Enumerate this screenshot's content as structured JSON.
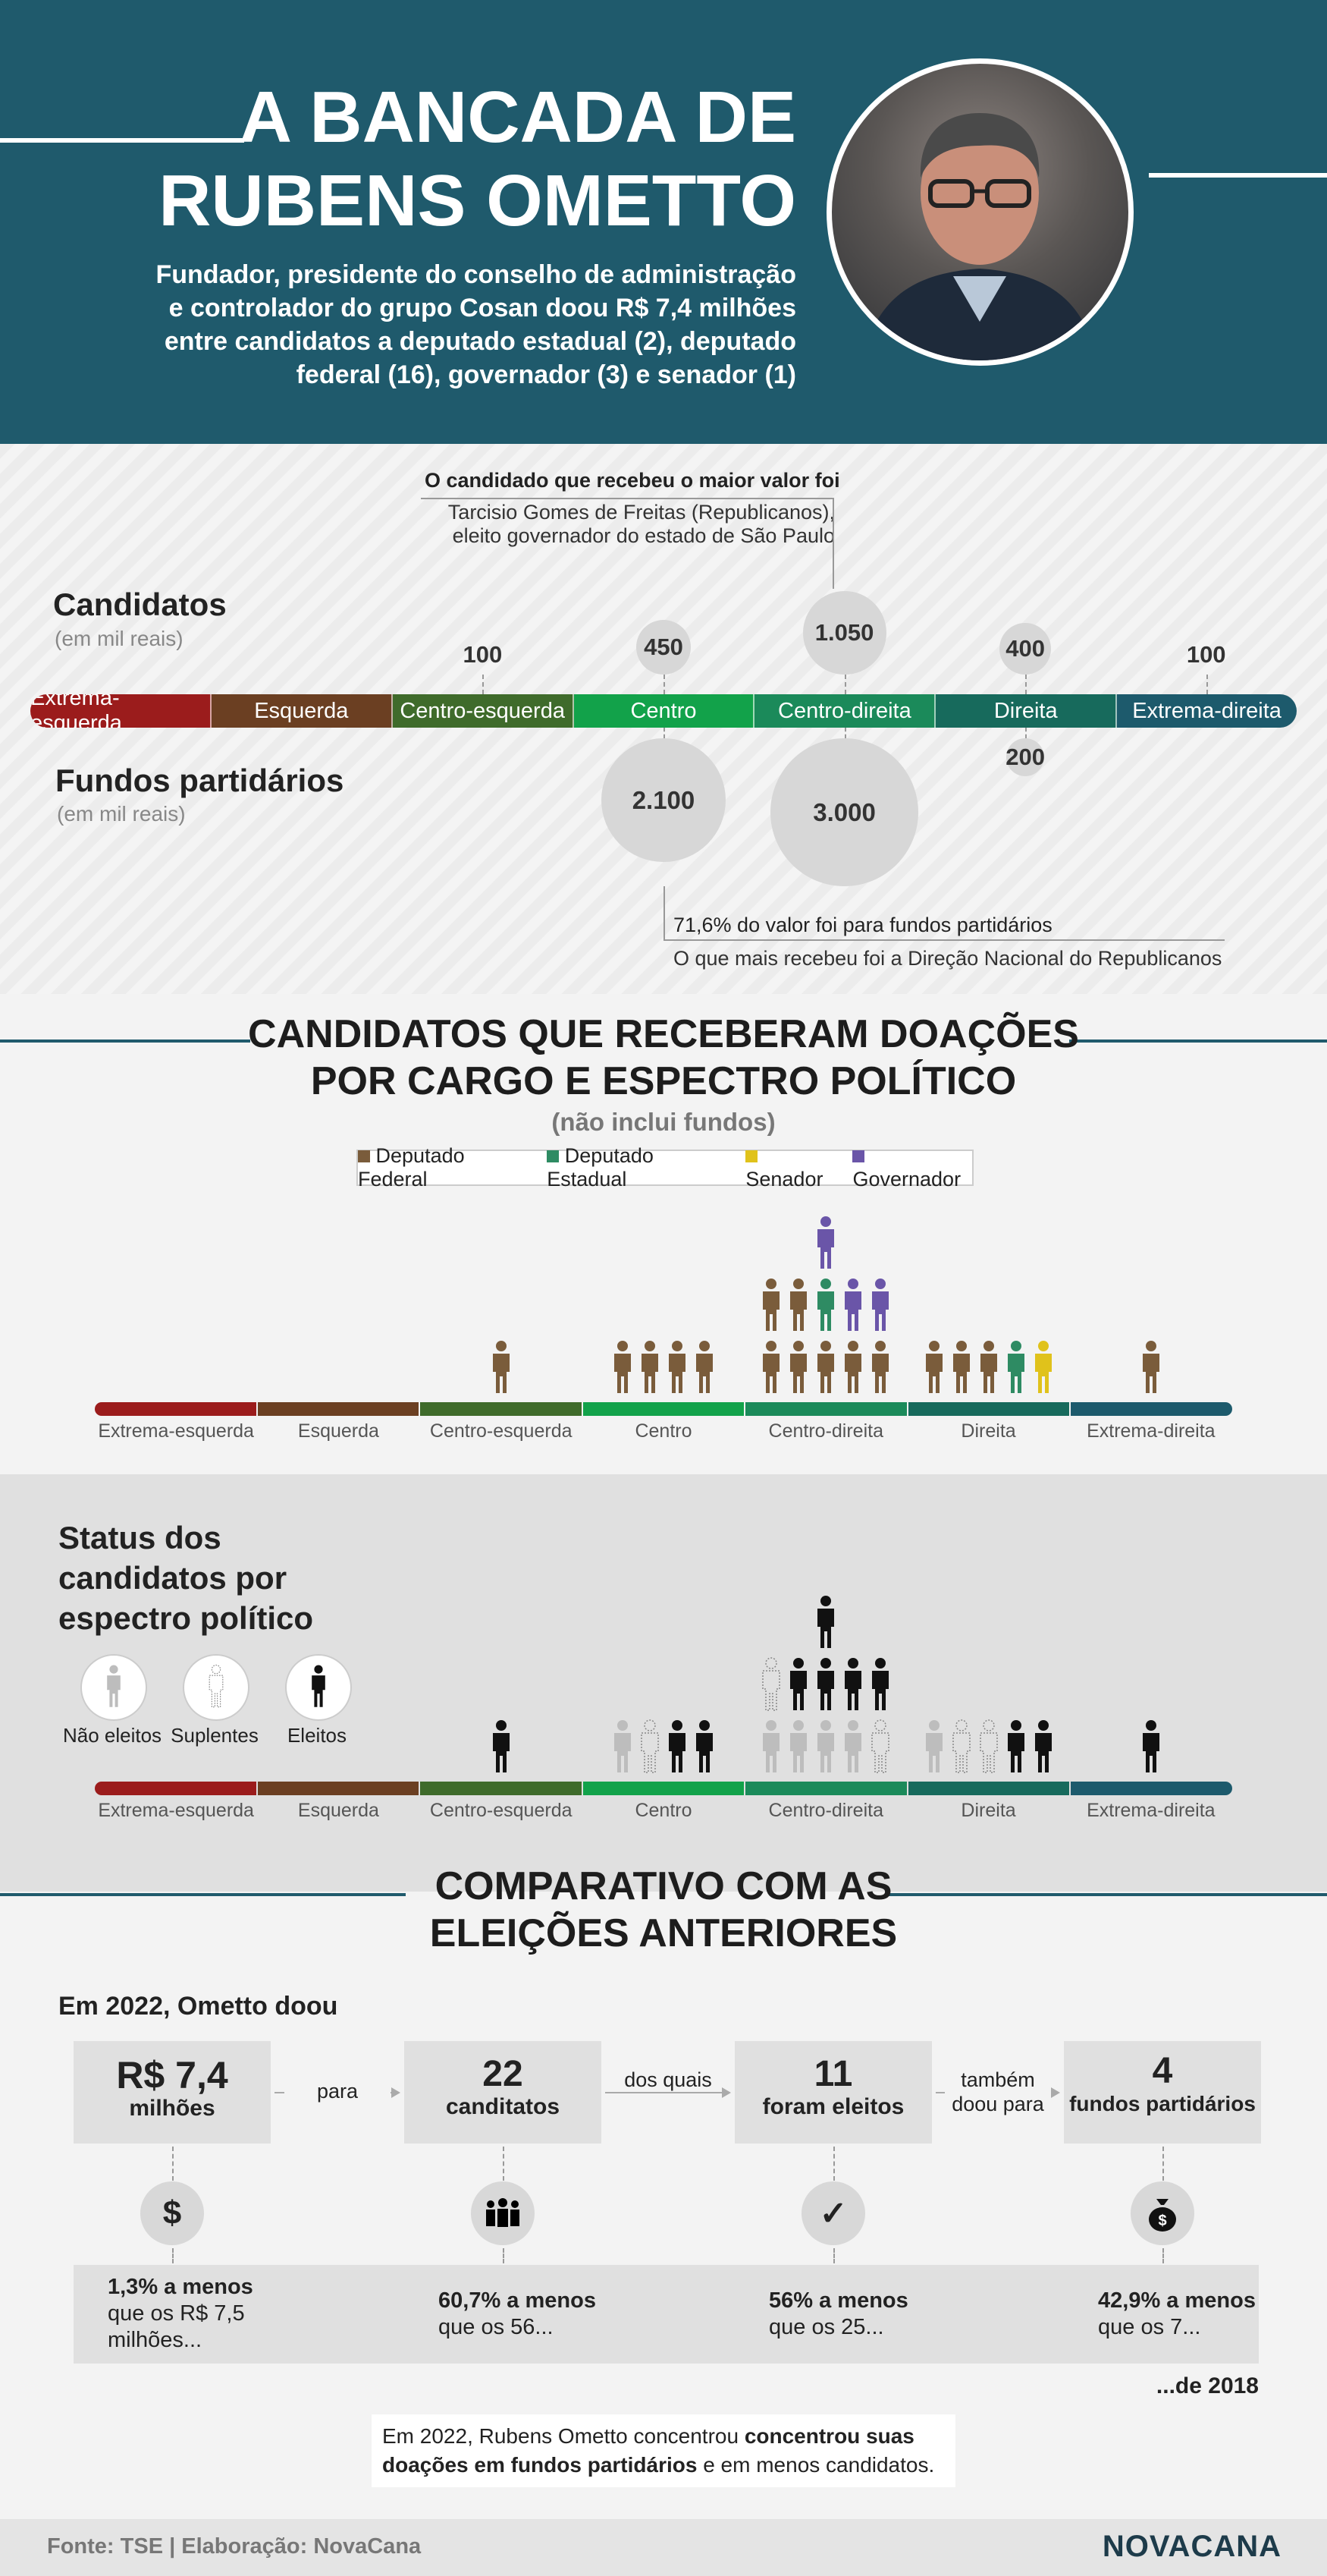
{
  "header": {
    "title_line1": "A BANCADA DE",
    "title_line2": "RUBENS OMETTO",
    "subtitle_lines": [
      "Fundador, presidente do conselho de administração",
      "e controlador do grupo Cosan doou R$ 7,4 milhões",
      "entre candidatos a deputado estadual (2), deputado",
      "federal (16), governador (3) e senador (1)"
    ]
  },
  "spectrum_categories": [
    "Extrema-esquerda",
    "Esquerda",
    "Centro-esquerda",
    "Centro",
    "Centro-direita",
    "Direita",
    "Extrema-direita"
  ],
  "spectrum_colors": [
    "#9b1c1c",
    "#6b3f22",
    "#3f6b2b",
    "#12a24a",
    "#1b8a5a",
    "#176a5c",
    "#1d5a6c"
  ],
  "donations": {
    "candidates_title": "Candidatos",
    "candidates_unit": "(em mil reais)",
    "funds_title": "Fundos partidários",
    "funds_unit": "(em mil reais)",
    "top_note_bold": "O candidado que recebeu o maior valor foi",
    "top_note_line1": "Tarcisio Gomes de Freitas (Republicanos),",
    "top_note_line2": "eleito governador do estado de São Paulo",
    "bottom_note_bold": "71,6% do valor foi para fundos partidários",
    "bottom_note": "O que mais recebeu foi a Direção Nacional do Republicanos"
  },
  "chart_data": [
    {
      "type": "bubble",
      "title": "Candidatos",
      "subtitle": "(em mil reais)",
      "categories": [
        "Extrema-esquerda",
        "Esquerda",
        "Centro-esquerda",
        "Centro",
        "Centro-direita",
        "Direita",
        "Extrema-direita"
      ],
      "values": [
        null,
        null,
        100,
        450,
        1050,
        400,
        100
      ],
      "labels": [
        "",
        "",
        "100",
        "450",
        "1.050",
        "400",
        "100"
      ]
    },
    {
      "type": "bubble",
      "title": "Fundos partidários",
      "subtitle": "(em mil reais)",
      "categories": [
        "Extrema-esquerda",
        "Esquerda",
        "Centro-esquerda",
        "Centro",
        "Centro-direita",
        "Direita",
        "Extrema-direita"
      ],
      "values": [
        null,
        null,
        null,
        2100,
        3000,
        200,
        null
      ],
      "labels": [
        "",
        "",
        "",
        "2.100",
        "3.000",
        "200",
        ""
      ]
    },
    {
      "type": "pictogram",
      "title": "CANDIDATOS QUE RECEBERAM DOAÇÕES POR CARGO E ESPECTRO POLÍTICO",
      "subtitle": "(não inclui fundos)",
      "categories": [
        "Extrema-esquerda",
        "Esquerda",
        "Centro-esquerda",
        "Centro",
        "Centro-direita",
        "Direita",
        "Extrema-direita"
      ],
      "series": [
        {
          "name": "Deputado Federal",
          "color": "#7a5c3b",
          "values": [
            0,
            0,
            1,
            4,
            7,
            3,
            1
          ]
        },
        {
          "name": "Deputado Estadual",
          "color": "#2e8b63",
          "values": [
            0,
            0,
            0,
            0,
            1,
            1,
            0
          ]
        },
        {
          "name": "Senador",
          "color": "#e0c21b",
          "values": [
            0,
            0,
            0,
            0,
            0,
            1,
            0
          ]
        },
        {
          "name": "Governador",
          "color": "#6a55a8",
          "values": [
            0,
            0,
            0,
            0,
            3,
            0,
            0
          ]
        }
      ]
    },
    {
      "type": "pictogram",
      "title": "Status dos candidatos por espectro político",
      "categories": [
        "Extrema-esquerda",
        "Esquerda",
        "Centro-esquerda",
        "Centro",
        "Centro-direita",
        "Direita",
        "Extrema-direita"
      ],
      "series": [
        {
          "name": "Não eleitos",
          "values": [
            0,
            0,
            0,
            1,
            4,
            1,
            0
          ]
        },
        {
          "name": "Suplentes",
          "values": [
            0,
            0,
            0,
            1,
            2,
            2,
            0
          ]
        },
        {
          "name": "Eleitos",
          "values": [
            0,
            0,
            1,
            2,
            5,
            2,
            1
          ]
        }
      ]
    }
  ],
  "status": {
    "title_lines": [
      "Status dos",
      "candidatos por",
      "espectro político"
    ],
    "legend": [
      "Não eleitos",
      "Suplentes",
      "Eleitos"
    ]
  },
  "comparison": {
    "title_line1": "COMPARATIVO COM AS",
    "title_line2": "ELEIÇÕES ANTERIORES",
    "intro": "Em 2022, Ometto doou",
    "boxes": [
      {
        "big": "R$ 7,4",
        "small": "milhões"
      },
      {
        "big": "22",
        "small": "canditatos"
      },
      {
        "big": "11",
        "small": "foram eleitos"
      },
      {
        "big": "4",
        "small": "fundos partidários"
      }
    ],
    "connectors": [
      "para",
      "dos quais",
      "também doou para"
    ],
    "icons": [
      "dollar-icon",
      "people-icon",
      "check-icon",
      "money-bag-icon"
    ],
    "diffs": [
      {
        "bold": "1,3% a menos",
        "rest": "que os R$ 7,5 milhões..."
      },
      {
        "bold": "60,7% a menos",
        "rest": "que os 56..."
      },
      {
        "bold": "56% a menos",
        "rest": "que os 25..."
      },
      {
        "bold": "42,9% a menos",
        "rest": "que os 7..."
      }
    ],
    "year_note": "...de 2018",
    "conclusion_pre": "Em 2022, Rubens Ometto concentrou ",
    "conclusion_bold": "concentrou suas doações em fundos partidários",
    "conclusion_post": " e em menos candidatos."
  },
  "footer": {
    "source": "Fonte: TSE | Elaboração: NovaCana",
    "logo": "NOVACANA"
  }
}
